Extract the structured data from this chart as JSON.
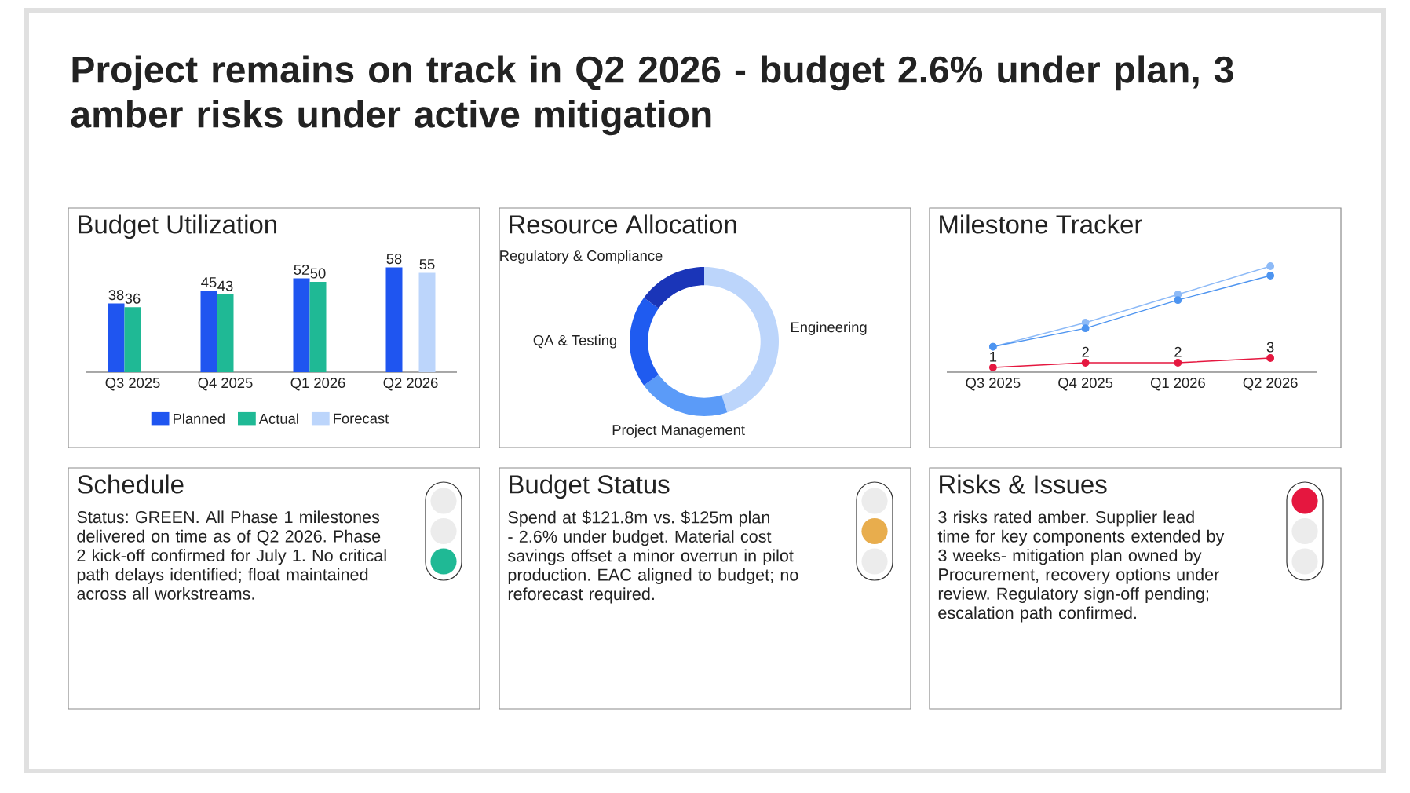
{
  "chart_data": [
    {
      "type": "other",
      "title": "Project remains on track in Q2 2026 - budget 2.6% under plan, 3 amber risks under active mitigation"
    },
    {
      "type": "bar",
      "title": "Budget Utilization",
      "categories": [
        "Q3 2025",
        "Q4 2025",
        "Q1 2026",
        "Q2 2026"
      ],
      "series": [
        {
          "name": "Planned",
          "color": "#1f55f0",
          "values": [
            38,
            45,
            52,
            58
          ]
        },
        {
          "name": "Actual",
          "color": "#1fb995",
          "values": [
            36,
            43,
            50,
            null
          ]
        },
        {
          "name": "Forecast",
          "color": "#bcd5fb",
          "values": [
            null,
            null,
            null,
            55
          ]
        }
      ],
      "data_labels": true,
      "legend": "bottom"
    },
    {
      "type": "donut",
      "title": "Resource Allocation",
      "categories": [
        "Engineering",
        "Project Management",
        "QA & Testing",
        "Regulatory & Compliance"
      ],
      "values": [
        45,
        20,
        20,
        15
      ],
      "colors": [
        "#bcd5fb",
        "#5b9bf8",
        "#1f5bf0",
        "#1a35b8"
      ]
    },
    {
      "type": "line",
      "title": "Milestone Tracker",
      "categories": [
        "Q3 2025",
        "Q4 2025",
        "Q1 2026",
        "Q2 2026"
      ],
      "marker": "circle",
      "series": [
        {
          "color": "#8dbaf7",
          "values": [
            5.4,
            10.5,
            16.5,
            22.5
          ]
        },
        {
          "color": "#4d94f0",
          "values": [
            5.4,
            9.3,
            15.3,
            20.5
          ]
        },
        {
          "color": "#e5173f",
          "values": [
            1,
            2,
            2,
            3
          ],
          "value_labels": [
            "1",
            "2",
            "2",
            "3"
          ]
        }
      ]
    },
    {
      "type": "other",
      "title": "Schedule",
      "annotations": [
        "Status: GREEN. All Phase 1 milestones delivered on time as of Q2 2026. Phase 2 kick-off confirmed for July 1. No critical path delays identified; float maintained across all workstreams."
      ],
      "colors": [
        "#ececec",
        "#ececec",
        "#1fb995"
      ]
    },
    {
      "type": "other",
      "title": "Budget Status",
      "annotations": [
        "Spend at $121.8m vs. $125m plan - 2.6% under budget. Material cost savings offset a minor overrun in pilot production. EAC aligned to budget; no reforecast required."
      ],
      "colors": [
        "#ececec",
        "#e8ad4d",
        "#ececec"
      ]
    },
    {
      "type": "other",
      "title": "Risks & Issues",
      "annotations": [
        "3 risks rated amber. Supplier lead time for key components extended by 3 weeks- mitigation plan owned by Procurement, recovery options under review. Regulatory sign-off pending; escalation path confirmed."
      ],
      "colors": [
        "#e5173f",
        "#ececec",
        "#ececec"
      ]
    }
  ]
}
